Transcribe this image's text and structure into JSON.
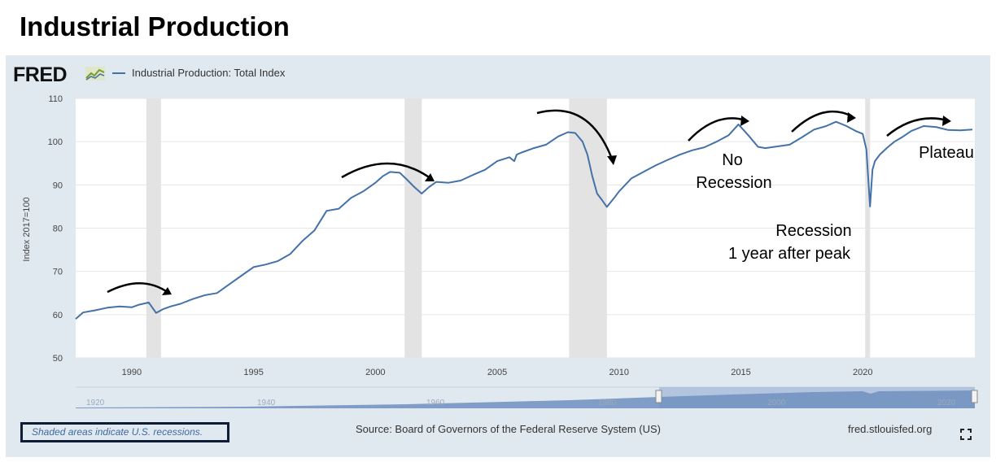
{
  "page_title": "Industrial Production",
  "logo_text": "FRED",
  "logo_icon": "chart-line-icon",
  "legend_label": "Industrial Production: Total Index",
  "footer": {
    "shaded_note": "Shaded areas indicate U.S. recessions.",
    "source": "Source: Board of Governors of the Federal Reserve System (US)",
    "site": "fred.stlouisfed.org"
  },
  "expand_icon": "expand-icon",
  "colors": {
    "line": "#4472a8",
    "panel": "#e1e9f0",
    "recession": "#e3e3e3",
    "navigator": "#6f8fbf"
  },
  "chart_data": {
    "type": "line",
    "ylabel": "Index 2017=100",
    "ylim": [
      50,
      110
    ],
    "y_ticks": [
      50,
      60,
      70,
      80,
      90,
      100,
      110
    ],
    "xlim": [
      1987.7,
      2024.6
    ],
    "x_ticks": [
      1990,
      1995,
      2000,
      2005,
      2010,
      2015,
      2020
    ],
    "grid": true,
    "legend_position": "top-left",
    "recessions": [
      [
        1990.6,
        1991.2
      ],
      [
        2001.2,
        2001.9
      ],
      [
        2007.95,
        2009.5
      ],
      [
        2020.1,
        2020.3
      ]
    ],
    "series": [
      {
        "name": "Industrial Production: Total Index",
        "x": [
          1987.7,
          1988.0,
          1988.5,
          1989.0,
          1989.5,
          1990.0,
          1990.3,
          1990.7,
          1991.0,
          1991.3,
          1991.6,
          1992.0,
          1992.5,
          1993.0,
          1993.5,
          1994.0,
          1994.5,
          1995.0,
          1995.5,
          1996.0,
          1996.5,
          1997.0,
          1997.5,
          1998.0,
          1998.5,
          1999.0,
          1999.5,
          2000.0,
          2000.3,
          2000.6,
          2001.0,
          2001.3,
          2001.6,
          2001.9,
          2002.2,
          2002.5,
          2003.0,
          2003.5,
          2004.0,
          2004.5,
          2005.0,
          2005.5,
          2005.7,
          2005.8,
          2006.0,
          2006.5,
          2007.0,
          2007.5,
          2007.9,
          2008.2,
          2008.5,
          2008.7,
          2008.9,
          2009.1,
          2009.3,
          2009.5,
          2009.8,
          2010.0,
          2010.5,
          2011.0,
          2011.5,
          2012.0,
          2012.5,
          2013.0,
          2013.5,
          2014.0,
          2014.5,
          2014.9,
          2015.3,
          2015.7,
          2016.0,
          2016.5,
          2017.0,
          2017.5,
          2018.0,
          2018.5,
          2018.9,
          2019.3,
          2019.7,
          2020.0,
          2020.15,
          2020.3,
          2020.4,
          2020.5,
          2020.7,
          2021.0,
          2021.3,
          2021.6,
          2022.0,
          2022.5,
          2023.0,
          2023.5,
          2024.0,
          2024.5
        ],
        "values": [
          59,
          60.5,
          61,
          61.6,
          61.9,
          61.7,
          62.3,
          62.8,
          60.4,
          61.3,
          61.9,
          62.5,
          63.6,
          64.5,
          65,
          67,
          69,
          71,
          71.6,
          72.4,
          74,
          77,
          79.5,
          84,
          84.5,
          87,
          88.5,
          90.5,
          92,
          93,
          92.8,
          91.2,
          89.5,
          88,
          89.5,
          90.7,
          90.5,
          91,
          92.3,
          93.5,
          95.5,
          96.4,
          95.5,
          97,
          97.5,
          98.5,
          99.3,
          101.2,
          102.2,
          102,
          100,
          97,
          92,
          88,
          86.5,
          84.9,
          87,
          88.5,
          91.5,
          93,
          94.5,
          95.8,
          97,
          98,
          98.7,
          100,
          101.5,
          104,
          101.5,
          98.8,
          98.5,
          98.9,
          99.3,
          101,
          102.8,
          103.6,
          104.6,
          103.7,
          102.5,
          101.8,
          98.2,
          85,
          93.5,
          95.5,
          97,
          98.6,
          100,
          101,
          102.5,
          103.6,
          103.4,
          102.7,
          102.6,
          102.8
        ]
      }
    ],
    "navigator_ticks": [
      "1920",
      "1940",
      "1960",
      "1980",
      "2000",
      "2020"
    ],
    "annotations": [
      {
        "lines": [
          "No",
          "Recession"
        ]
      },
      {
        "lines": [
          "Recession",
          "1 year after peak"
        ]
      },
      {
        "lines": [
          "Plateau"
        ]
      }
    ]
  }
}
